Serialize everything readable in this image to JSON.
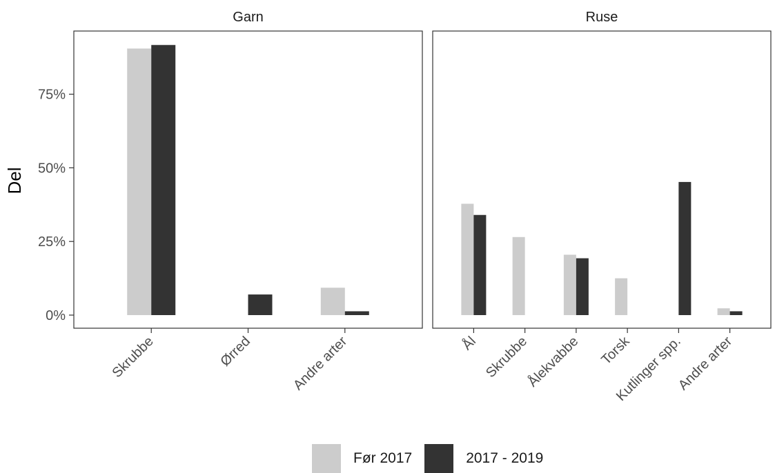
{
  "chart_data": {
    "type": "bar",
    "ylabel": "Del",
    "ylim": [
      0,
      1.0
    ],
    "yticks": [
      0,
      0.25,
      0.5,
      0.75
    ],
    "ytick_labels": [
      "0%",
      "25%",
      "50%",
      "75%"
    ],
    "grid": false,
    "legend_position": "bottom",
    "series_names": [
      "Før 2017",
      "2017 - 2019"
    ],
    "colors": {
      "Før 2017": "#cccccc",
      "2017 - 2019": "#333333"
    },
    "panels": [
      {
        "title": "Garn",
        "categories": [
          "Skrubbe",
          "Ørred",
          "Andre arter"
        ],
        "series": [
          {
            "name": "Før 2017",
            "values": [
              0.905,
              0.0,
              0.093
            ]
          },
          {
            "name": "2017 - 2019",
            "values": [
              0.917,
              0.07,
              0.013
            ]
          }
        ]
      },
      {
        "title": "Ruse",
        "categories": [
          "Ål",
          "Skrubbe",
          "Ålekvabbe",
          "Torsk",
          "Kutlinger spp.",
          "Andre arter"
        ],
        "series": [
          {
            "name": "Før 2017",
            "values": [
              0.378,
              0.265,
              0.205,
              0.125,
              0.0,
              0.023
            ]
          },
          {
            "name": "2017 - 2019",
            "values": [
              0.34,
              0.0,
              0.193,
              0.0,
              0.452,
              0.013
            ]
          }
        ]
      }
    ]
  }
}
